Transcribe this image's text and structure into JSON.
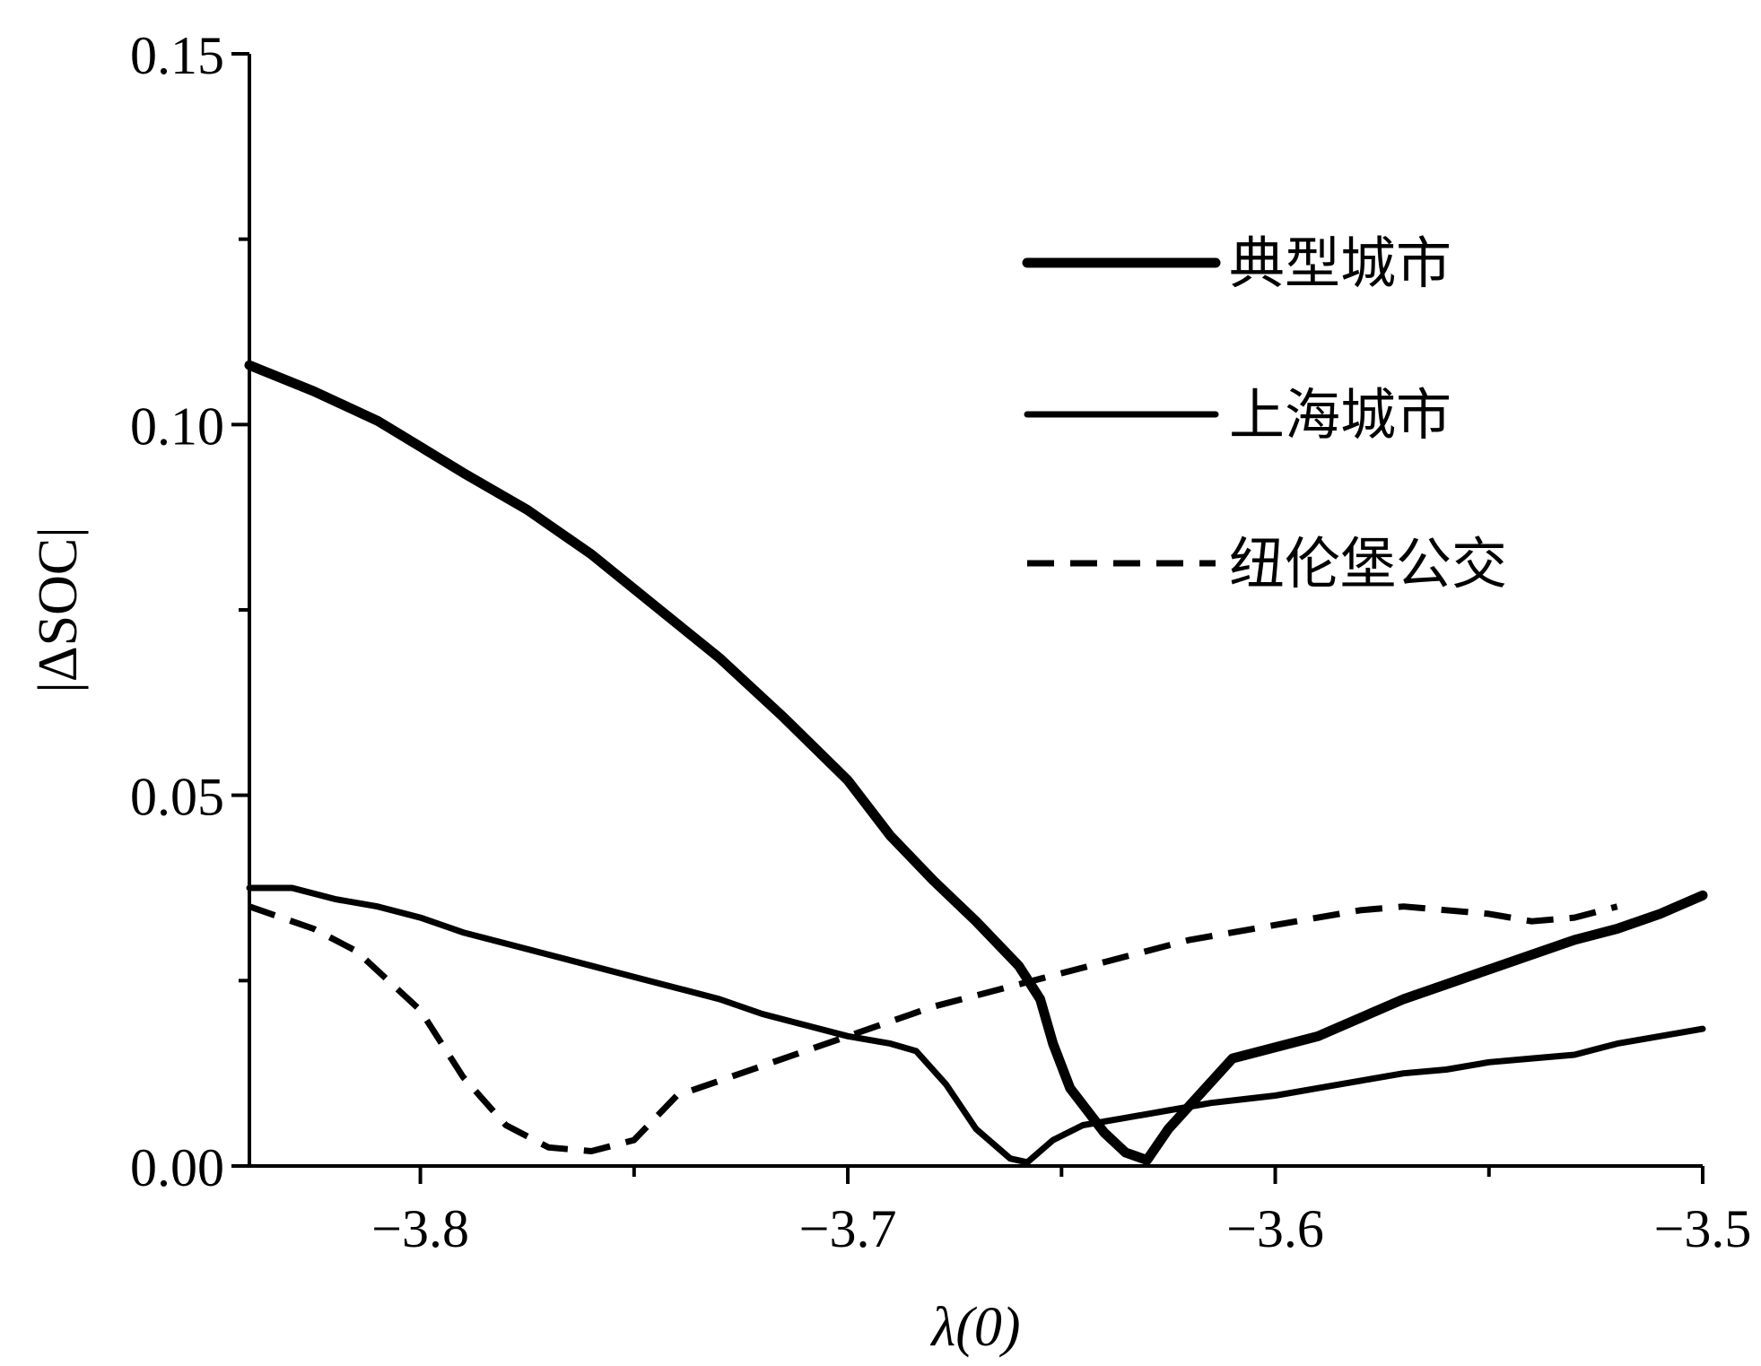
{
  "chart_data": {
    "type": "line",
    "title": "",
    "xlabel": "λ(0)",
    "ylabel": "|ΔSOC|",
    "xlim": [
      -3.84,
      -3.5
    ],
    "ylim": [
      0,
      0.15
    ],
    "x_ticks": [
      -3.8,
      -3.7,
      -3.6,
      -3.5
    ],
    "x_tick_labels": [
      "−3.8",
      "−3.7",
      "−3.6",
      "−3.5"
    ],
    "y_ticks": [
      0,
      0.05,
      0.1,
      0.15
    ],
    "y_tick_labels": [
      "0.00",
      "0.05",
      "0.10",
      "0.15"
    ],
    "grid": false,
    "legend_position": "top-right",
    "series": [
      {
        "name": "典型城市",
        "style": "thick-solid",
        "x": [
          -3.84,
          -3.825,
          -3.81,
          -3.8,
          -3.79,
          -3.775,
          -3.76,
          -3.745,
          -3.73,
          -3.715,
          -3.7,
          -3.69,
          -3.68,
          -3.67,
          -3.66,
          -3.655,
          -3.652,
          -3.648,
          -3.64,
          -3.635,
          -3.63,
          -3.625,
          -3.61,
          -3.59,
          -3.57,
          -3.56,
          -3.55,
          -3.54,
          -3.53,
          -3.52,
          -3.51,
          -3.5
        ],
        "y": [
          0.108,
          0.1045,
          0.1005,
          0.097,
          0.0935,
          0.0885,
          0.0825,
          0.0755,
          0.0685,
          0.0605,
          0.052,
          0.0445,
          0.0385,
          0.033,
          0.027,
          0.0225,
          0.0165,
          0.0105,
          0.0045,
          0.0018,
          0.0008,
          0.005,
          0.0145,
          0.0175,
          0.0225,
          0.0245,
          0.0265,
          0.0285,
          0.0305,
          0.032,
          0.034,
          0.0365
        ]
      },
      {
        "name": "上海城市",
        "style": "solid",
        "x": [
          -3.84,
          -3.83,
          -3.82,
          -3.81,
          -3.8,
          -3.79,
          -3.78,
          -3.77,
          -3.76,
          -3.75,
          -3.74,
          -3.73,
          -3.72,
          -3.71,
          -3.7,
          -3.69,
          -3.684,
          -3.677,
          -3.67,
          -3.665,
          -3.662,
          -3.658,
          -3.652,
          -3.645,
          -3.635,
          -3.625,
          -3.615,
          -3.6,
          -3.59,
          -3.58,
          -3.57,
          -3.56,
          -3.55,
          -3.54,
          -3.53,
          -3.52,
          -3.51,
          -3.5
        ],
        "y": [
          0.0375,
          0.0375,
          0.036,
          0.035,
          0.0335,
          0.0315,
          0.03,
          0.0285,
          0.027,
          0.0255,
          0.024,
          0.0225,
          0.0205,
          0.019,
          0.0175,
          0.0165,
          0.0155,
          0.011,
          0.005,
          0.0025,
          0.001,
          0.0005,
          0.0035,
          0.0055,
          0.0065,
          0.0075,
          0.0085,
          0.0095,
          0.0105,
          0.0115,
          0.0125,
          0.013,
          0.014,
          0.0145,
          0.015,
          0.0165,
          0.0175,
          0.0185
        ]
      },
      {
        "name": "纽伦堡公交",
        "style": "dashed",
        "x": [
          -3.84,
          -3.825,
          -3.815,
          -3.8,
          -3.79,
          -3.78,
          -3.77,
          -3.76,
          -3.75,
          -3.74,
          -3.72,
          -3.7,
          -3.68,
          -3.66,
          -3.64,
          -3.62,
          -3.6,
          -3.58,
          -3.57,
          -3.56,
          -3.55,
          -3.54,
          -3.53,
          -3.52
        ],
        "y": [
          0.035,
          0.032,
          0.029,
          0.021,
          0.012,
          0.0055,
          0.0025,
          0.002,
          0.0035,
          0.0095,
          0.0135,
          0.0175,
          0.0215,
          0.0245,
          0.0275,
          0.0305,
          0.0325,
          0.0345,
          0.035,
          0.0345,
          0.034,
          0.033,
          0.0335,
          0.035
        ]
      }
    ]
  }
}
